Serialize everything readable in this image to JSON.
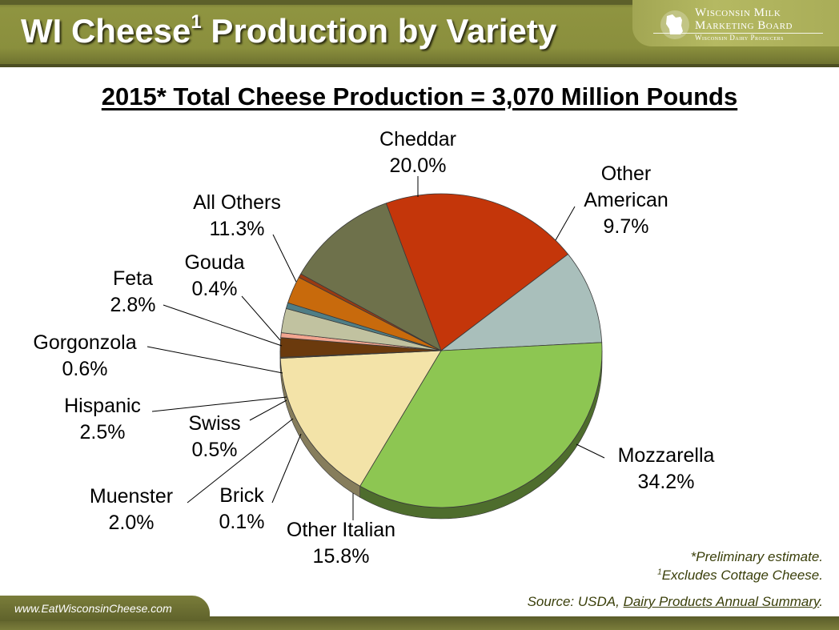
{
  "header": {
    "title": "WI Cheese",
    "title_superscript": "1",
    "title_rest": " Production by Variety"
  },
  "logo": {
    "line1": "Wisconsin Milk",
    "line2": "Marketing Board",
    "line3": "Wisconsin Dairy Producers",
    "icon": "wisconsin-state-icon"
  },
  "subtitle": "2015* Total Cheese Production = 3,070 Million Pounds",
  "chart_data": {
    "type": "pie",
    "title": "2015* Total Cheese Production = 3,070 Million Pounds",
    "slices": [
      {
        "label": "Cheddar",
        "value": 20.0,
        "pct_label": "20.0%",
        "color": "#c4360a"
      },
      {
        "label": "Other American",
        "value": 9.7,
        "pct_label": "9.7%",
        "color": "#a9bfbb"
      },
      {
        "label": "Mozzarella",
        "value": 34.2,
        "pct_label": "34.2%",
        "color": "#8dc652"
      },
      {
        "label": "Other Italian",
        "value": 15.8,
        "pct_label": "15.8%",
        "color": "#f3e3a8"
      },
      {
        "label": "Brick",
        "value": 0.1,
        "pct_label": "0.1%",
        "color": "#8a6f3f"
      },
      {
        "label": "Muenster",
        "value": 2.0,
        "pct_label": "2.0%",
        "color": "#6b3a0d"
      },
      {
        "label": "Swiss",
        "value": 0.5,
        "pct_label": "0.5%",
        "color": "#f2a58f"
      },
      {
        "label": "Hispanic",
        "value": 2.5,
        "pct_label": "2.5%",
        "color": "#c1c2a0"
      },
      {
        "label": "Gorgonzola",
        "value": 0.6,
        "pct_label": "0.6%",
        "color": "#4f7e86"
      },
      {
        "label": "Feta",
        "value": 2.8,
        "pct_label": "2.8%",
        "color": "#c86a0c"
      },
      {
        "label": "Gouda",
        "value": 0.4,
        "pct_label": "0.4%",
        "color": "#9a3a12"
      },
      {
        "label": "All Others",
        "value": 11.3,
        "pct_label": "11.3%",
        "color": "#6e714b"
      }
    ]
  },
  "footnotes": {
    "preliminary": "*Preliminary estimate.",
    "excludes_sup": "1",
    "excludes": "Excludes Cottage Cheese."
  },
  "source": {
    "prefix": "Source: USDA, ",
    "title": "Dairy Products Annual Summary",
    "suffix": "."
  },
  "footer": {
    "url": "www.EatWisconsinCheese.com"
  }
}
